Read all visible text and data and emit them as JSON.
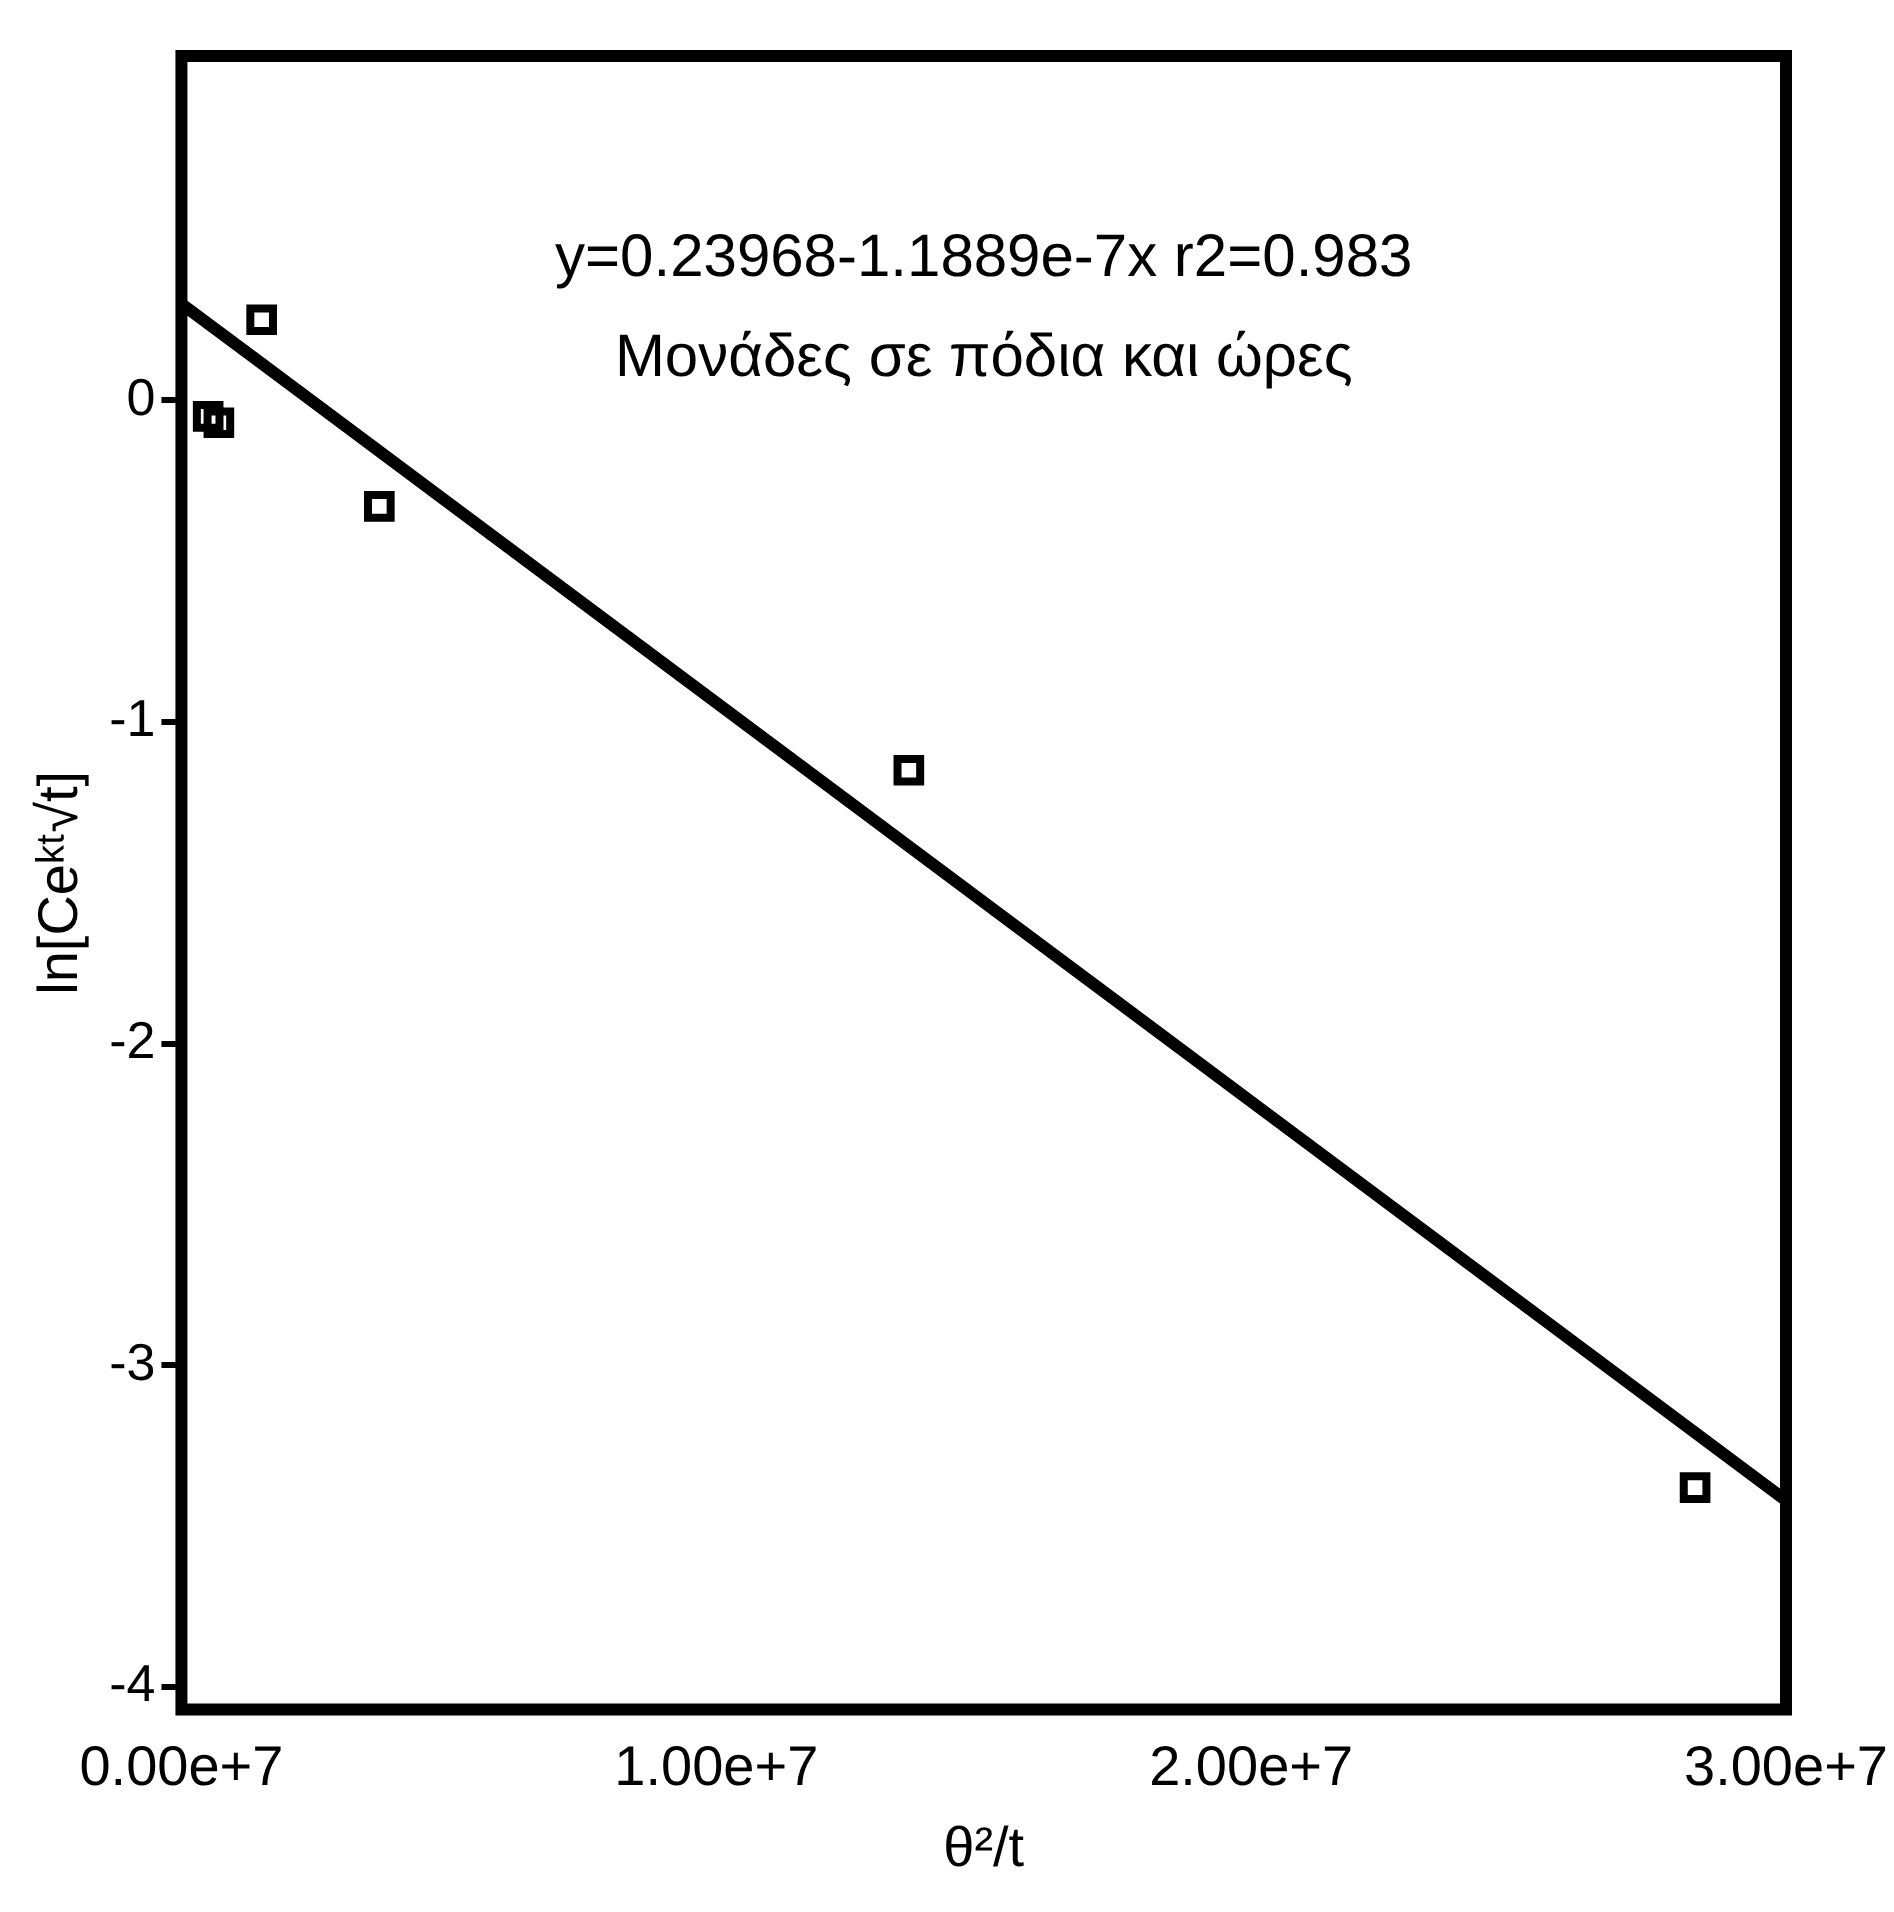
{
  "chart_data": {
    "type": "scatter",
    "xlabel": "θ²/t",
    "ylabel": "ln[Ceᵏᵗ√t]",
    "annotations": [
      "y=0.23968-1.1889e-7x r2=0.983",
      "Μονάδες σε πόδια και ώρες"
    ],
    "xlim": [
      0,
      30000000
    ],
    "ylim": [
      -4.07,
      1.07
    ],
    "xticks": [
      {
        "value": 0,
        "label": "0.00e+7"
      },
      {
        "value": 10000000,
        "label": "1.00e+7"
      },
      {
        "value": 20000000,
        "label": "2.00e+7"
      },
      {
        "value": 30000000,
        "label": "3.00e+7"
      }
    ],
    "yticks": [
      -4,
      -3,
      -2,
      -1,
      0
    ],
    "grid": false,
    "legend": false,
    "series": [
      {
        "marker": "square",
        "color": "#000000",
        "x": [
          500000,
          700000,
          1500000,
          3700000,
          13600000,
          28300000
        ],
        "values": [
          -0.05,
          -0.07,
          0.25,
          -0.33,
          -1.15,
          -3.38
        ]
      },
      {
        "type": "line",
        "marker": "none",
        "color": "#000000",
        "x": [
          0,
          30000000
        ],
        "values": [
          0.3,
          -3.42
        ]
      }
    ]
  }
}
